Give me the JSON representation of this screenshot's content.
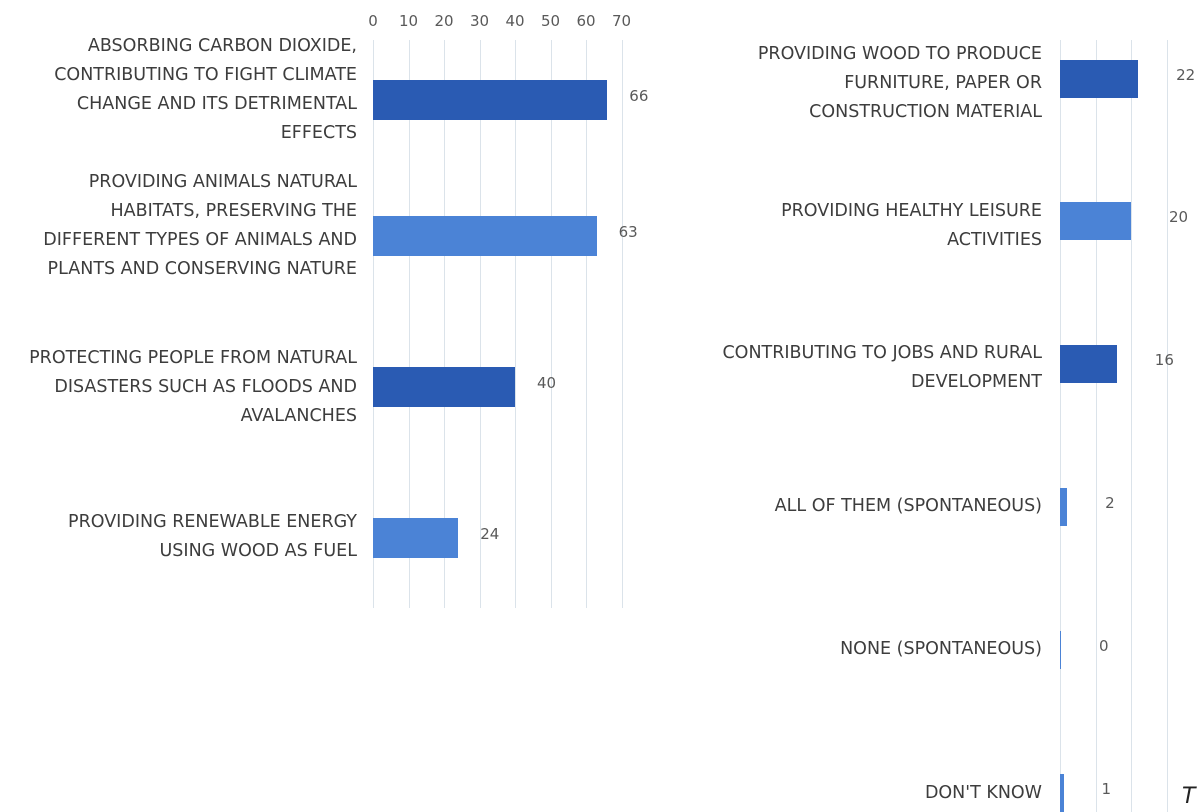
{
  "colors": {
    "dark_bar": "#2a5bb3",
    "light_bar": "#4b83d6",
    "grid": "#dbe3ea"
  },
  "corner_text": "T",
  "chart_data": [
    {
      "type": "bar",
      "orientation": "horizontal",
      "title": "",
      "xlim": [
        0,
        70
      ],
      "x_ticks": [
        0,
        10,
        20,
        30,
        40,
        50,
        60,
        70
      ],
      "grid": true,
      "categories": [
        "ABSORBING CARBON DIOXIDE, CONTRIBUTING TO FIGHT CLIMATE CHANGE AND ITS DETRIMENTAL EFFECTS",
        "PROVIDING ANIMALS NATURAL HABITATS, PRESERVING THE DIFFERENT TYPES OF ANIMALS AND PLANTS AND CONSERVING NATURE",
        "PROTECTING PEOPLE FROM NATURAL DISASTERS SUCH AS FLOODS AND AVALANCHES",
        "PROVIDING RENEWABLE ENERGY USING WOOD AS FUEL"
      ],
      "values": [
        66,
        63,
        40,
        24
      ]
    },
    {
      "type": "bar",
      "orientation": "horizontal",
      "title": "",
      "xlim": [
        0,
        30
      ],
      "grid": true,
      "categories": [
        "PROVIDING WOOD TO PRODUCE FURNITURE, PAPER OR CONSTRUCTION MATERIAL",
        "PROVIDING HEALTHY LEISURE ACTIVITIES",
        "CONTRIBUTING TO JOBS AND RURAL DEVELOPMENT",
        "ALL OF THEM (SPONTANEOUS)",
        "NONE (SPONTANEOUS)",
        "DON'T KNOW"
      ],
      "values": [
        22,
        20,
        16,
        2,
        0,
        1
      ]
    }
  ]
}
